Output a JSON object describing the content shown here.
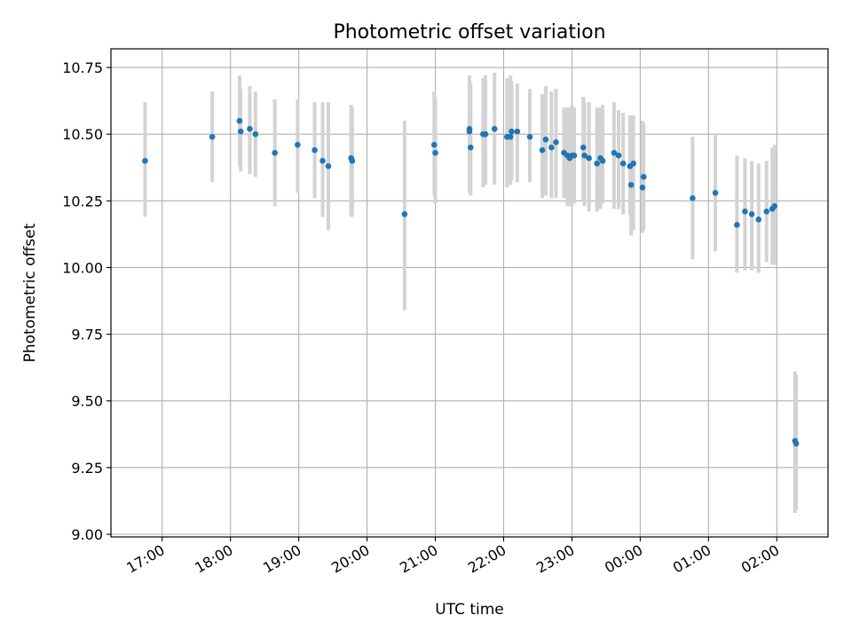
{
  "chart_data": {
    "type": "scatter",
    "title": "Photometric offset variation",
    "xlabel": "UTC time",
    "ylabel": "Photometric offset",
    "ylim": [
      8.99,
      10.82
    ],
    "xlim": [
      "16:15",
      "02:45"
    ],
    "x_tick_labels": [
      "17:00",
      "18:00",
      "19:00",
      "20:00",
      "21:00",
      "22:00",
      "23:00",
      "00:00",
      "01:00",
      "02:00"
    ],
    "y_tick_labels": [
      "9.00",
      "9.25",
      "9.50",
      "9.75",
      "10.00",
      "10.25",
      "10.50",
      "10.75"
    ],
    "grid": true,
    "colors": {
      "points": "#1f77b4",
      "errorbars": "#d3d3d3",
      "grid": "#b0b0b0"
    },
    "series": [
      {
        "x": [
          "16:45",
          "17:44",
          "18:08",
          "18:09",
          "18:17",
          "18:22",
          "18:39",
          "18:59",
          "19:14",
          "19:21",
          "19:26",
          "19:46",
          "19:47",
          "20:33",
          "20:59",
          "21:00",
          "21:30",
          "21:30",
          "21:31",
          "21:42",
          "21:44",
          "21:52",
          "22:03",
          "22:06",
          "22:07",
          "22:12",
          "22:23",
          "22:34",
          "22:37",
          "22:42",
          "22:46",
          "22:53",
          "22:56",
          "22:58",
          "23:00",
          "23:02",
          "23:10",
          "23:11",
          "23:15",
          "23:22",
          "23:25",
          "23:27",
          "23:37",
          "23:41",
          "23:45",
          "23:51",
          "23:52",
          "23:54",
          "24:02",
          "24:03",
          "24:46",
          "25:06",
          "25:25",
          "25:32",
          "25:38",
          "25:44",
          "25:51",
          "25:56",
          "25:58",
          "26:16",
          "26:17"
        ],
        "y": [
          10.4,
          10.49,
          10.55,
          10.51,
          10.52,
          10.5,
          10.43,
          10.46,
          10.44,
          10.4,
          10.38,
          10.41,
          10.4,
          10.2,
          10.46,
          10.43,
          10.51,
          10.52,
          10.45,
          10.5,
          10.5,
          10.52,
          10.49,
          10.49,
          10.51,
          10.51,
          10.49,
          10.44,
          10.48,
          10.45,
          10.47,
          10.43,
          10.42,
          10.41,
          10.42,
          10.42,
          10.45,
          10.42,
          10.41,
          10.39,
          10.41,
          10.4,
          10.43,
          10.42,
          10.39,
          10.38,
          10.31,
          10.39,
          10.3,
          10.34,
          10.26,
          10.28,
          10.16,
          10.21,
          10.2,
          10.18,
          10.21,
          10.22,
          10.23,
          9.35,
          9.34
        ],
        "yerr_low": [
          10.19,
          10.32,
          10.38,
          10.36,
          10.35,
          10.34,
          10.23,
          10.28,
          10.26,
          10.19,
          10.14,
          10.19,
          10.19,
          9.84,
          10.27,
          10.24,
          10.28,
          10.32,
          10.27,
          10.3,
          10.31,
          10.31,
          10.3,
          10.31,
          10.33,
          10.32,
          10.32,
          10.26,
          10.27,
          10.26,
          10.26,
          10.26,
          10.23,
          10.23,
          10.23,
          10.24,
          10.25,
          10.23,
          10.21,
          10.21,
          10.22,
          10.24,
          10.22,
          10.22,
          10.2,
          10.2,
          10.12,
          10.14,
          10.13,
          10.14,
          10.03,
          10.06,
          9.98,
          9.99,
          9.99,
          9.98,
          10.02,
          10.01,
          10.01,
          9.08,
          9.09
        ],
        "yerr_high": [
          10.62,
          10.66,
          10.72,
          10.67,
          10.68,
          10.66,
          10.63,
          10.63,
          10.62,
          10.62,
          10.62,
          10.61,
          10.6,
          10.55,
          10.66,
          10.64,
          10.71,
          10.72,
          10.69,
          10.71,
          10.72,
          10.73,
          10.71,
          10.72,
          10.7,
          10.69,
          10.67,
          10.65,
          10.68,
          10.66,
          10.67,
          10.6,
          10.6,
          10.6,
          10.61,
          10.6,
          10.64,
          10.62,
          10.62,
          10.6,
          10.6,
          10.61,
          10.62,
          10.59,
          10.58,
          10.57,
          10.57,
          10.57,
          10.55,
          10.54,
          10.49,
          10.5,
          10.42,
          10.41,
          10.4,
          10.39,
          10.4,
          10.45,
          10.46,
          9.61,
          9.6
        ]
      }
    ]
  }
}
